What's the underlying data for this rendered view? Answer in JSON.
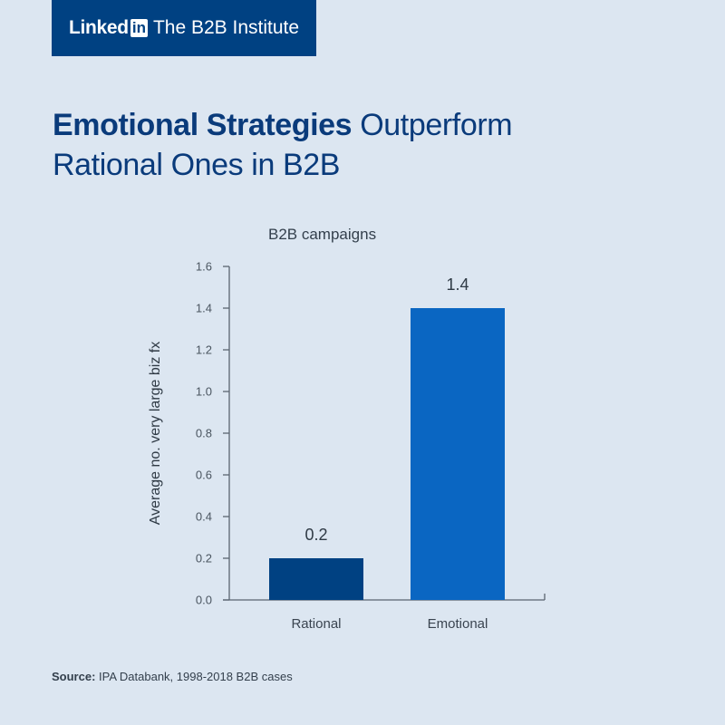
{
  "brand": {
    "word": "Linked",
    "in_badge": "in",
    "name": "The B2B Institute"
  },
  "headline": {
    "bold": "Emotional Strategies",
    "regular": " Outperform Rational Ones in B2B"
  },
  "source": {
    "label": "Source:",
    "text": " IPA Databank, 1998-2018 B2B cases"
  },
  "colors": {
    "background": "#dce6f1",
    "brand": "#004182",
    "rational_bar": "#004182",
    "emotional_bar": "#0a66c2",
    "axis": "#5a6470"
  },
  "chart_data": {
    "type": "bar",
    "title": "B2B campaigns",
    "xlabel": "",
    "ylabel": "Average no. very large biz fx",
    "categories": [
      "Rational",
      "Emotional"
    ],
    "values": [
      0.2,
      1.4
    ],
    "data_labels": [
      "0.2",
      "1.4"
    ],
    "bar_colors": [
      "#004182",
      "#0a66c2"
    ],
    "ylim": [
      0,
      1.6
    ],
    "yticks": [
      0.0,
      0.2,
      0.4,
      0.6,
      0.8,
      1.0,
      1.2,
      1.4,
      1.6
    ],
    "ytick_labels": [
      "0.0",
      "0.2",
      "0.4",
      "0.6",
      "0.8",
      "1.0",
      "1.2",
      "1.4",
      "1.6"
    ],
    "grid": false,
    "legend": "none"
  }
}
